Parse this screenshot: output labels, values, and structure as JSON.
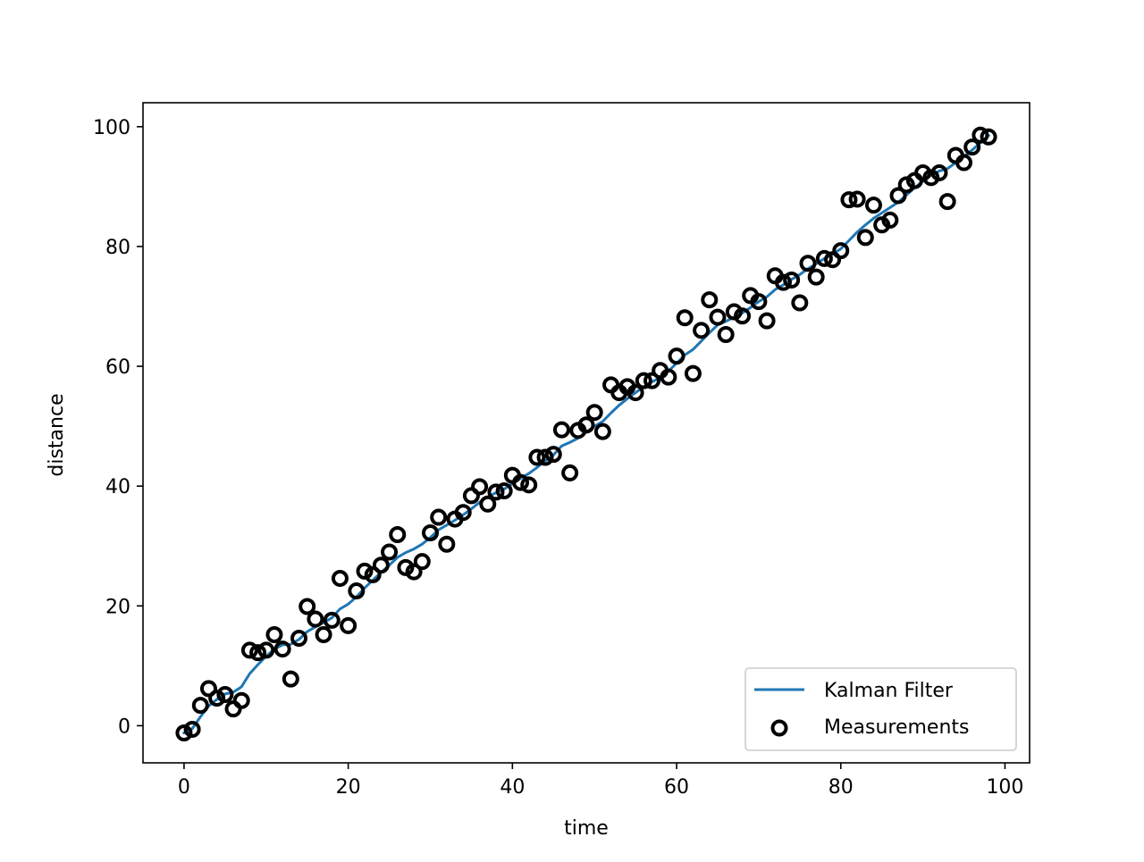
{
  "chart_data": {
    "type": "scatter",
    "title": "",
    "xlabel": "time",
    "ylabel": "distance",
    "xlim": [
      -5,
      103
    ],
    "ylim": [
      -6.2,
      104
    ],
    "grid": false,
    "legend_placement": "lower-right",
    "x_ticks": [
      0,
      20,
      40,
      60,
      80,
      100
    ],
    "y_ticks": [
      0,
      20,
      40,
      60,
      80,
      100
    ],
    "x_tick_labels": [
      "0",
      "20",
      "40",
      "60",
      "80",
      "100"
    ],
    "y_tick_labels": [
      "0",
      "20",
      "40",
      "60",
      "80",
      "100"
    ],
    "series": [
      {
        "name": "Kalman Filter",
        "kind": "line",
        "color": "#1f77b4",
        "x": [
          0,
          1,
          2,
          3,
          4,
          5,
          6,
          7,
          8,
          9,
          10,
          11,
          12,
          13,
          14,
          15,
          16,
          17,
          18,
          19,
          20,
          21,
          22,
          23,
          24,
          25,
          26,
          27,
          28,
          29,
          30,
          31,
          32,
          33,
          34,
          35,
          36,
          37,
          38,
          39,
          40,
          41,
          42,
          43,
          44,
          45,
          46,
          47,
          48,
          49,
          50,
          51,
          52,
          53,
          54,
          55,
          56,
          57,
          58,
          59,
          60,
          61,
          62,
          63,
          64,
          65,
          66,
          67,
          68,
          69,
          70,
          71,
          72,
          73,
          74,
          75,
          76,
          77,
          78,
          79,
          80,
          81,
          82,
          83,
          84,
          85,
          86,
          87,
          88,
          89,
          90,
          91,
          92,
          93,
          94,
          95,
          96,
          97,
          98
        ],
        "y": [
          -1.2,
          -0.5,
          1.5,
          3.3,
          4.4,
          5.3,
          5.6,
          6.5,
          8.7,
          10.2,
          11.6,
          12.8,
          13.5,
          13.6,
          14.4,
          15.7,
          16.5,
          17.2,
          18.0,
          19.5,
          20.3,
          21.5,
          23.0,
          24.3,
          25.6,
          26.8,
          28.1,
          28.9,
          29.5,
          30.3,
          31.4,
          32.7,
          33.5,
          34.3,
          35.2,
          36.2,
          37.3,
          38.2,
          38.9,
          39.5,
          40.4,
          41.3,
          42.1,
          43.1,
          44.2,
          45.2,
          46.7,
          47.3,
          48.0,
          49.0,
          50.0,
          50.8,
          52.2,
          53.5,
          54.6,
          55.6,
          56.6,
          57.4,
          58.1,
          59.2,
          60.5,
          61.9,
          62.8,
          64.2,
          65.6,
          66.9,
          67.5,
          68.2,
          68.9,
          69.8,
          70.8,
          71.6,
          72.8,
          73.6,
          74.5,
          75.3,
          76.3,
          77.1,
          78.0,
          78.7,
          79.6,
          81.0,
          82.4,
          83.6,
          84.7,
          85.6,
          86.5,
          87.4,
          88.6,
          89.8,
          90.9,
          91.9,
          92.6,
          93.0,
          94.0,
          95.0,
          96.1,
          97.3,
          98.5
        ]
      },
      {
        "name": "Measurements",
        "kind": "scatter",
        "color": "#000000",
        "x": [
          0,
          1,
          2,
          3,
          4,
          5,
          6,
          7,
          8,
          9,
          10,
          11,
          12,
          13,
          14,
          15,
          16,
          17,
          18,
          19,
          20,
          21,
          22,
          23,
          24,
          25,
          26,
          27,
          28,
          29,
          30,
          31,
          32,
          33,
          34,
          35,
          36,
          37,
          38,
          39,
          40,
          41,
          42,
          43,
          44,
          45,
          46,
          47,
          48,
          49,
          50,
          51,
          52,
          53,
          54,
          55,
          56,
          57,
          58,
          59,
          60,
          61,
          62,
          63,
          64,
          65,
          66,
          67,
          68,
          69,
          70,
          71,
          72,
          73,
          74,
          75,
          76,
          77,
          78,
          79,
          80,
          81,
          82,
          83,
          84,
          85,
          86,
          87,
          88,
          89,
          90,
          91,
          92,
          93,
          94,
          95,
          96,
          97,
          98
        ],
        "y": [
          -1.2,
          -0.6,
          3.4,
          6.2,
          4.6,
          5.2,
          2.8,
          4.2,
          12.6,
          12.2,
          12.6,
          15.2,
          12.8,
          7.8,
          14.6,
          19.9,
          17.8,
          15.2,
          17.6,
          24.6,
          16.7,
          22.5,
          25.8,
          25.2,
          26.8,
          29.0,
          31.9,
          26.4,
          25.7,
          27.4,
          32.2,
          34.8,
          30.3,
          34.5,
          35.6,
          38.4,
          39.9,
          37.0,
          39.0,
          39.2,
          41.8,
          40.6,
          40.2,
          44.8,
          44.8,
          45.3,
          49.4,
          42.2,
          49.3,
          50.2,
          52.3,
          49.1,
          56.9,
          55.6,
          56.6,
          55.6,
          57.6,
          57.6,
          59.3,
          58.2,
          61.7,
          68.1,
          58.8,
          66.0,
          71.1,
          68.2,
          65.3,
          69.1,
          68.4,
          71.8,
          70.8,
          67.6,
          75.1,
          74.0,
          74.4,
          70.6,
          77.2,
          74.9,
          78.0,
          77.8,
          79.3,
          87.8,
          87.9,
          81.5,
          86.9,
          83.6,
          84.4,
          88.5,
          90.3,
          91.0,
          92.3,
          91.5,
          92.3,
          87.5,
          95.2,
          94.0,
          96.6,
          98.6,
          98.3
        ]
      }
    ]
  }
}
